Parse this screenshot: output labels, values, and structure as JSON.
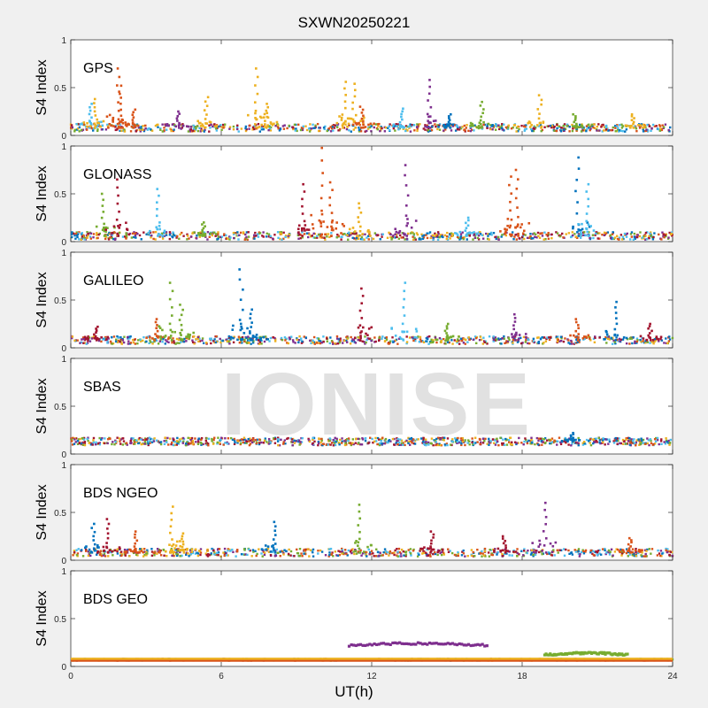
{
  "chart_data": {
    "type": "scatter",
    "title": "SXWN20250221",
    "xlabel": "UT(h)",
    "ylabel": "S4 Index",
    "xlim": [
      0,
      24
    ],
    "ylim": [
      0,
      1
    ],
    "xticks": [
      0,
      6,
      12,
      18,
      24
    ],
    "yticks": [
      "0",
      "0.5",
      "1"
    ],
    "watermark": "IONISE",
    "panels": [
      {
        "name": "GPS",
        "baseline": 0.08,
        "spikes": [
          {
            "x": 0.8,
            "y": 0.33,
            "color": "#4DBEEE"
          },
          {
            "x": 1.0,
            "y": 0.38,
            "color": "#EDB120"
          },
          {
            "x": 1.9,
            "y": 0.7,
            "color": "#D95319"
          },
          {
            "x": 2.0,
            "y": 0.52,
            "color": "#D95319"
          },
          {
            "x": 2.5,
            "y": 0.27,
            "color": "#D95319"
          },
          {
            "x": 4.3,
            "y": 0.25,
            "color": "#7E2F8E"
          },
          {
            "x": 5.4,
            "y": 0.4,
            "color": "#EDB120"
          },
          {
            "x": 7.4,
            "y": 0.7,
            "color": "#EDB120"
          },
          {
            "x": 7.8,
            "y": 0.33,
            "color": "#EDB120"
          },
          {
            "x": 10.9,
            "y": 0.56,
            "color": "#EDB120"
          },
          {
            "x": 11.3,
            "y": 0.54,
            "color": "#EDB120"
          },
          {
            "x": 11.6,
            "y": 0.3,
            "color": "#D95319"
          },
          {
            "x": 13.2,
            "y": 0.28,
            "color": "#4DBEEE"
          },
          {
            "x": 14.3,
            "y": 0.58,
            "color": "#7E2F8E"
          },
          {
            "x": 15.1,
            "y": 0.22,
            "color": "#0072BD"
          },
          {
            "x": 16.4,
            "y": 0.35,
            "color": "#77AC30"
          },
          {
            "x": 18.7,
            "y": 0.42,
            "color": "#EDB120"
          },
          {
            "x": 20.1,
            "y": 0.22,
            "color": "#77AC30"
          },
          {
            "x": 22.4,
            "y": 0.22,
            "color": "#EDB120"
          }
        ]
      },
      {
        "name": "GLONASS",
        "baseline": 0.06,
        "spikes": [
          {
            "x": 1.3,
            "y": 0.5,
            "color": "#77AC30"
          },
          {
            "x": 1.9,
            "y": 0.65,
            "color": "#A2142F"
          },
          {
            "x": 3.5,
            "y": 0.55,
            "color": "#4DBEEE"
          },
          {
            "x": 5.3,
            "y": 0.2,
            "color": "#77AC30"
          },
          {
            "x": 9.3,
            "y": 0.6,
            "color": "#A2142F"
          },
          {
            "x": 10.0,
            "y": 0.98,
            "color": "#D95319"
          },
          {
            "x": 10.4,
            "y": 0.62,
            "color": "#D95319"
          },
          {
            "x": 11.5,
            "y": 0.4,
            "color": "#EDB120"
          },
          {
            "x": 13.4,
            "y": 0.8,
            "color": "#7E2F8E"
          },
          {
            "x": 15.8,
            "y": 0.25,
            "color": "#4DBEEE"
          },
          {
            "x": 17.5,
            "y": 0.68,
            "color": "#D95319"
          },
          {
            "x": 17.8,
            "y": 0.75,
            "color": "#D95319"
          },
          {
            "x": 20.2,
            "y": 0.88,
            "color": "#0072BD"
          },
          {
            "x": 20.6,
            "y": 0.6,
            "color": "#4DBEEE"
          }
        ]
      },
      {
        "name": "GALILEO",
        "baseline": 0.08,
        "spikes": [
          {
            "x": 1.0,
            "y": 0.22,
            "color": "#A2142F"
          },
          {
            "x": 3.4,
            "y": 0.3,
            "color": "#D95319"
          },
          {
            "x": 4.0,
            "y": 0.68,
            "color": "#77AC30"
          },
          {
            "x": 4.4,
            "y": 0.45,
            "color": "#77AC30"
          },
          {
            "x": 6.8,
            "y": 0.82,
            "color": "#0072BD"
          },
          {
            "x": 7.2,
            "y": 0.4,
            "color": "#0072BD"
          },
          {
            "x": 11.6,
            "y": 0.62,
            "color": "#A2142F"
          },
          {
            "x": 13.3,
            "y": 0.68,
            "color": "#4DBEEE"
          },
          {
            "x": 15.0,
            "y": 0.25,
            "color": "#77AC30"
          },
          {
            "x": 17.7,
            "y": 0.35,
            "color": "#7E2F8E"
          },
          {
            "x": 20.2,
            "y": 0.3,
            "color": "#D95319"
          },
          {
            "x": 21.7,
            "y": 0.48,
            "color": "#0072BD"
          },
          {
            "x": 23.1,
            "y": 0.25,
            "color": "#A2142F"
          }
        ]
      },
      {
        "name": "SBAS",
        "baseline": 0.13,
        "spikes": [
          {
            "x": 20.0,
            "y": 0.22,
            "color": "#0072BD"
          }
        ]
      },
      {
        "name": "BDS NGEO",
        "baseline": 0.08,
        "spikes": [
          {
            "x": 0.9,
            "y": 0.38,
            "color": "#0072BD"
          },
          {
            "x": 1.5,
            "y": 0.43,
            "color": "#A2142F"
          },
          {
            "x": 2.6,
            "y": 0.3,
            "color": "#D95319"
          },
          {
            "x": 4.0,
            "y": 0.56,
            "color": "#EDB120"
          },
          {
            "x": 4.5,
            "y": 0.28,
            "color": "#EDB120"
          },
          {
            "x": 8.1,
            "y": 0.4,
            "color": "#0072BD"
          },
          {
            "x": 11.5,
            "y": 0.58,
            "color": "#77AC30"
          },
          {
            "x": 14.4,
            "y": 0.3,
            "color": "#A2142F"
          },
          {
            "x": 17.3,
            "y": 0.25,
            "color": "#A2142F"
          },
          {
            "x": 18.9,
            "y": 0.6,
            "color": "#7E2F8E"
          },
          {
            "x": 22.3,
            "y": 0.23,
            "color": "#D95319"
          }
        ]
      },
      {
        "name": "BDS GEO",
        "baseline": 0.07,
        "arcs": [
          {
            "x0": 11.1,
            "x1": 16.6,
            "y": 0.22,
            "color": "#7E2F8E"
          },
          {
            "x0": 18.9,
            "x1": 22.2,
            "y": 0.12,
            "color": "#77AC30"
          }
        ]
      }
    ],
    "colors": [
      "#0072BD",
      "#D95319",
      "#EDB120",
      "#7E2F8E",
      "#77AC30",
      "#4DBEEE",
      "#A2142F"
    ]
  }
}
